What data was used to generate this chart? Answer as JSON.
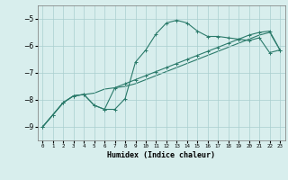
{
  "xlabel": "Humidex (Indice chaleur)",
  "x": [
    0,
    1,
    2,
    3,
    4,
    5,
    6,
    7,
    8,
    9,
    10,
    11,
    12,
    13,
    14,
    15,
    16,
    17,
    18,
    19,
    20,
    21,
    22,
    23
  ],
  "line_jagged": [
    -9.0,
    -8.55,
    -8.1,
    -7.85,
    -7.8,
    -8.2,
    -8.35,
    -8.35,
    -7.95,
    -6.6,
    -6.15,
    -5.55,
    -5.15,
    -5.05,
    -5.15,
    -5.45,
    -5.65,
    -5.65,
    -5.7,
    -5.75,
    -5.8,
    -5.7,
    -6.25,
    -6.15
  ],
  "line_smooth": [
    -9.0,
    -8.55,
    -8.1,
    -7.85,
    -7.8,
    -7.75,
    -7.6,
    -7.55,
    -7.5,
    -7.4,
    -7.25,
    -7.1,
    -6.95,
    -6.8,
    -6.65,
    -6.5,
    -6.35,
    -6.2,
    -6.05,
    -5.9,
    -5.75,
    -5.6,
    -5.5,
    -6.15
  ],
  "line_mid": [
    -9.0,
    -8.55,
    -8.1,
    -7.85,
    -7.8,
    -8.2,
    -8.35,
    -7.55,
    -7.4,
    -7.25,
    -7.1,
    -6.95,
    -6.8,
    -6.65,
    -6.5,
    -6.35,
    -6.2,
    -6.05,
    -5.9,
    -5.75,
    -5.6,
    -5.5,
    -5.45,
    -6.15
  ],
  "line_color": "#2a7a6a",
  "bg_color": "#d8eeed",
  "grid_color": "#aacfcf",
  "ylim": [
    -9.5,
    -4.5
  ],
  "xlim": [
    -0.5,
    23.5
  ],
  "yticks": [
    -9,
    -8,
    -7,
    -6,
    -5
  ],
  "xticks": [
    0,
    1,
    2,
    3,
    4,
    5,
    6,
    7,
    8,
    9,
    10,
    11,
    12,
    13,
    14,
    15,
    16,
    17,
    18,
    19,
    20,
    21,
    22,
    23
  ]
}
